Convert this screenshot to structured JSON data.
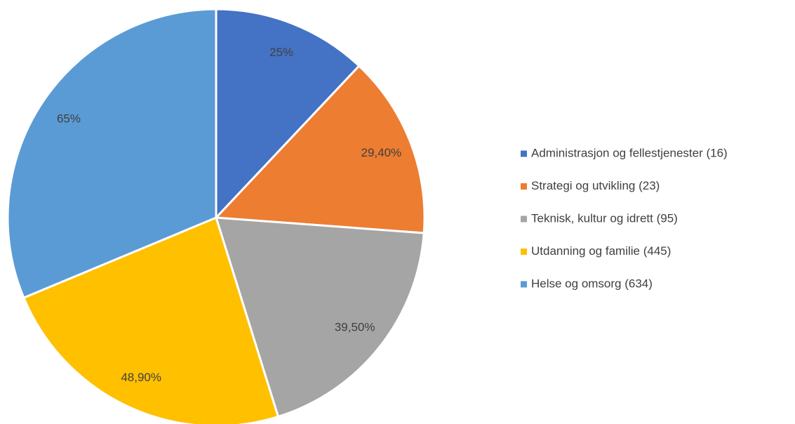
{
  "chart_data": {
    "type": "pie",
    "categories": [
      "Administrasjon og fellestjenester (16)",
      "Strategi og utvikling (23)",
      "Teknisk, kultur og idrett (95)",
      "Utdanning og familie (445)",
      "Helse og omsorg (634)"
    ],
    "values": [
      25,
      29.4,
      39.5,
      48.9,
      65
    ],
    "value_labels": [
      "25%",
      "29,40%",
      "39,50%",
      "48,90%",
      "65%"
    ],
    "colors": [
      "#4472c4",
      "#ed7d31",
      "#a5a5a5",
      "#ffc000",
      "#5b9bd5"
    ],
    "legend": "right"
  }
}
